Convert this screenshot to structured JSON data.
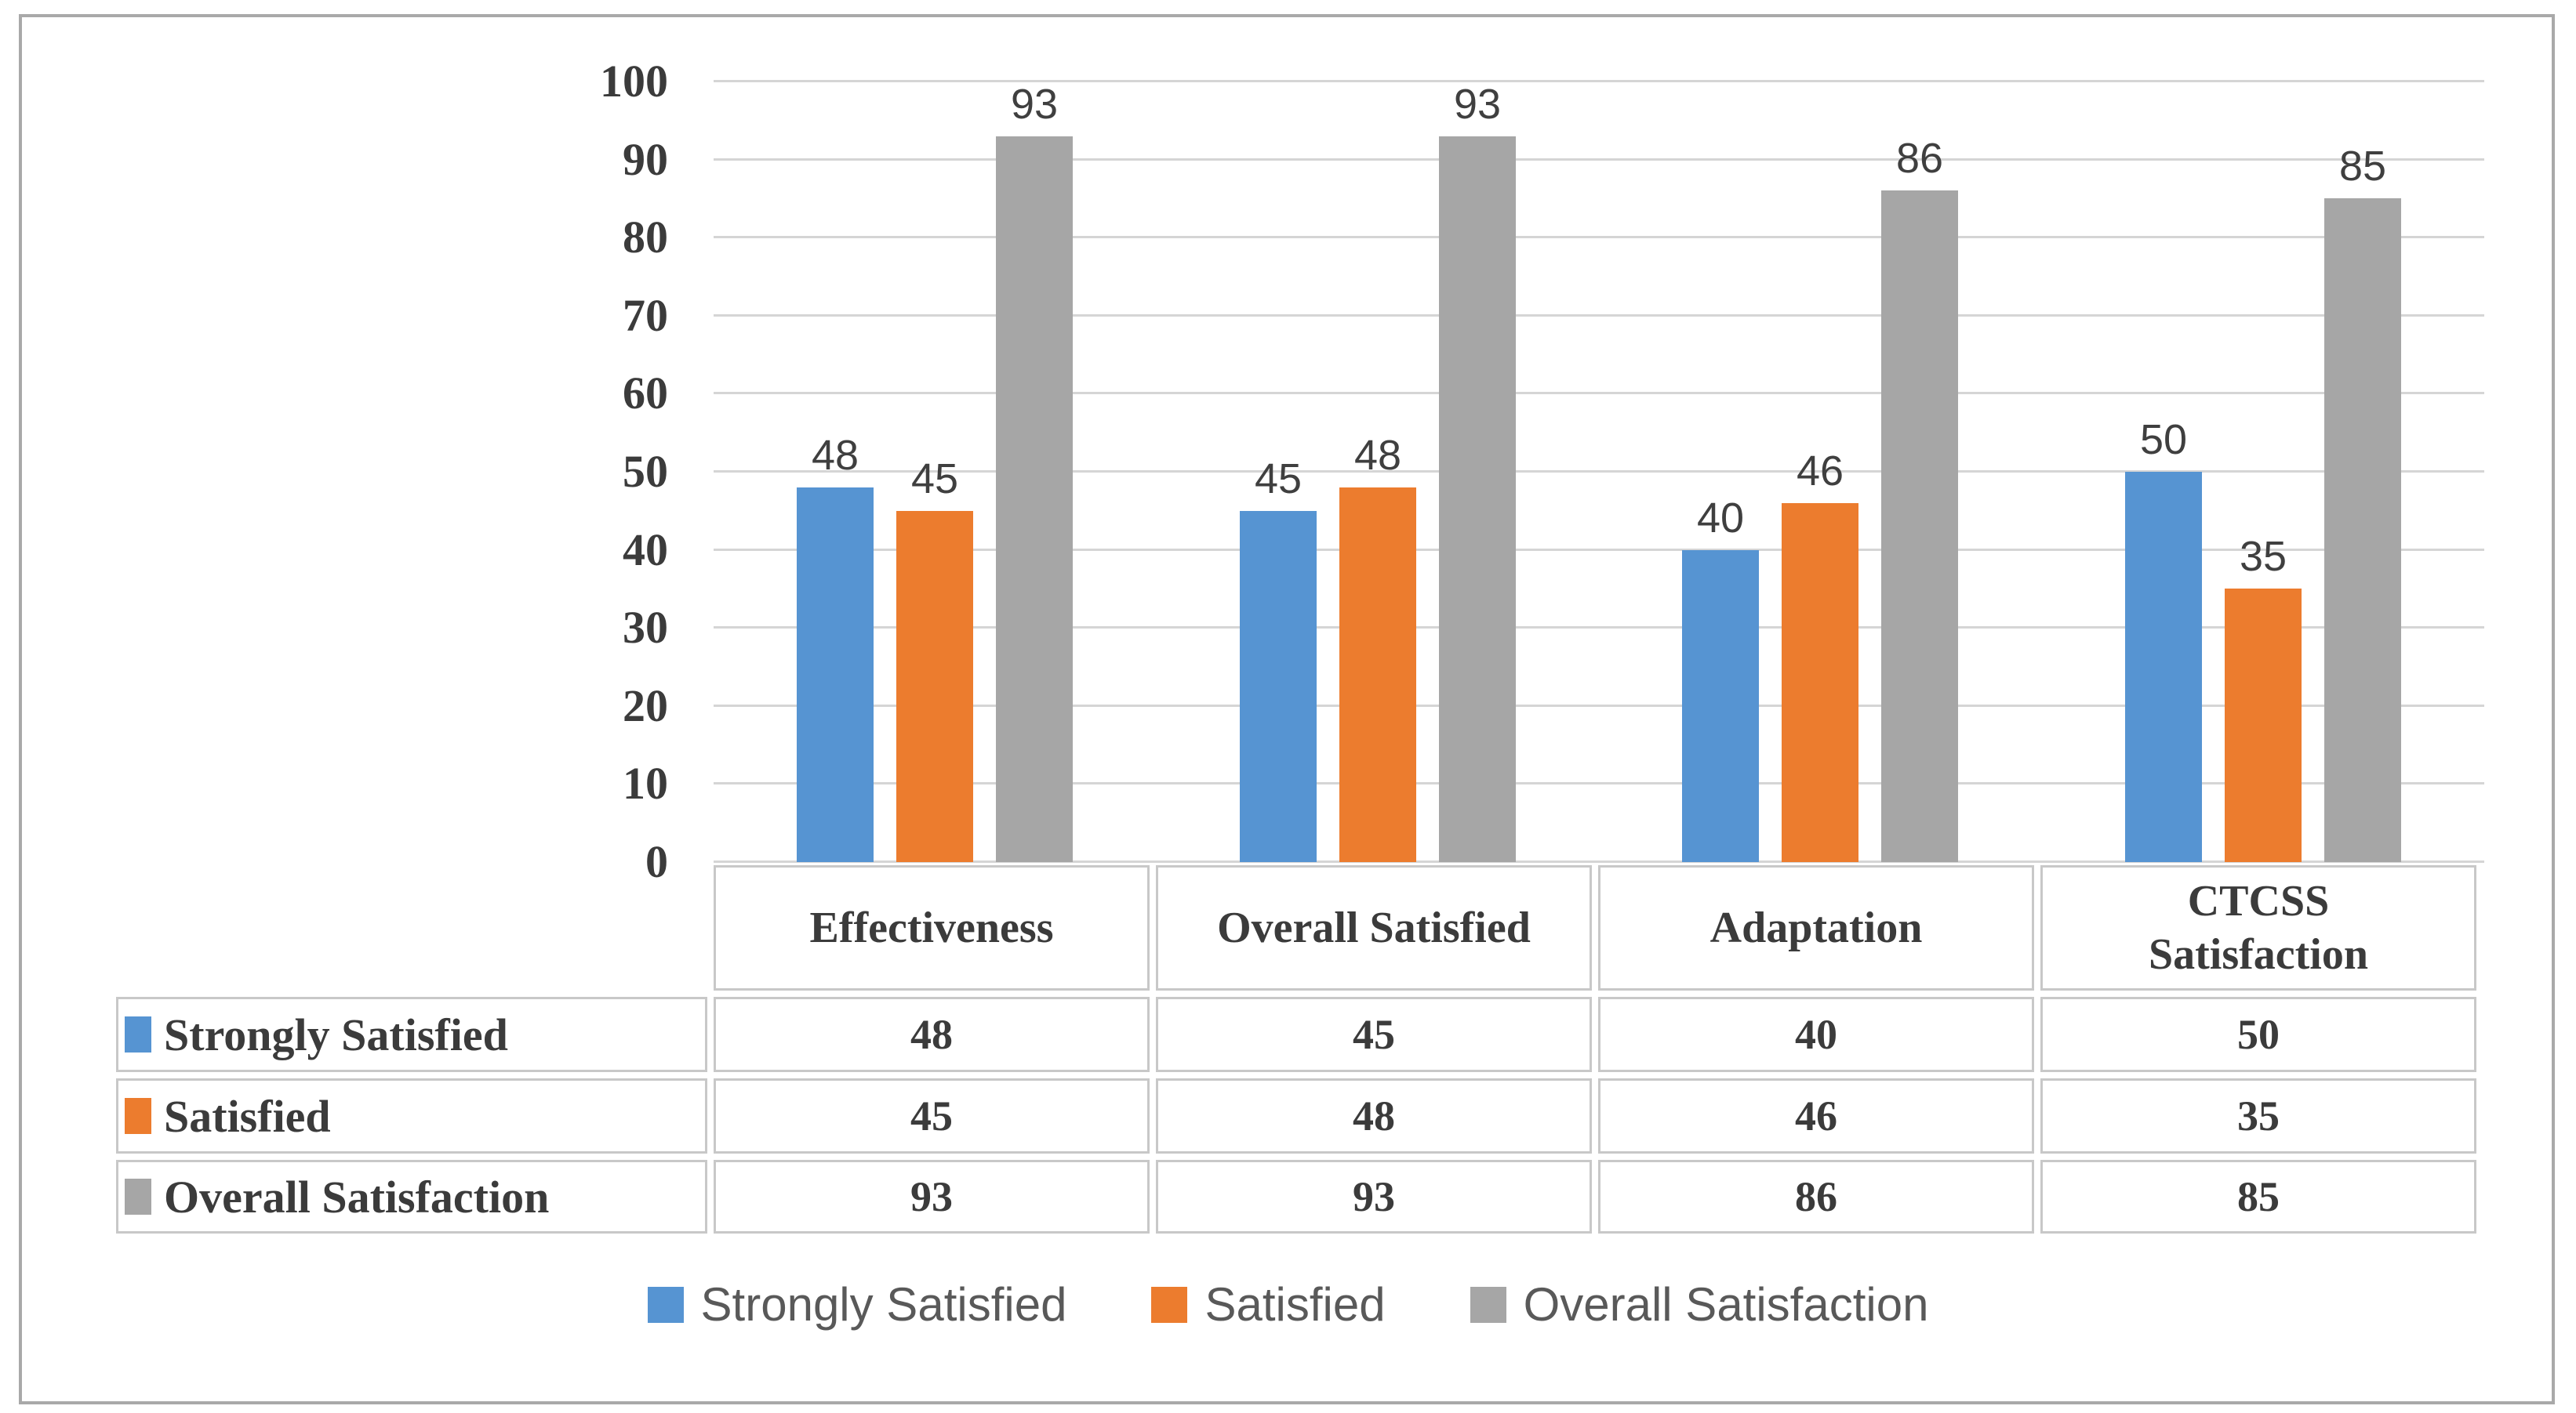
{
  "chart_data": {
    "type": "bar",
    "title": "",
    "categories": [
      "Effectiveness",
      "Overall Satisfied",
      "Adaptation",
      "CTCSS Satisfaction"
    ],
    "series": [
      {
        "name": "Strongly Satisfied",
        "color": "#5694D2",
        "values": [
          48,
          45,
          40,
          50
        ]
      },
      {
        "name": "Satisfied",
        "color": "#EC7C2E",
        "values": [
          45,
          48,
          46,
          35
        ]
      },
      {
        "name": "Overall Satisfaction",
        "color": "#A6A6A6",
        "values": [
          93,
          93,
          86,
          85
        ]
      }
    ],
    "ylim": [
      0,
      100
    ],
    "ytick_step": 10,
    "yticks": [
      "0",
      "10",
      "20",
      "30",
      "40",
      "50",
      "60",
      "70",
      "80",
      "90",
      "100"
    ],
    "xlabel": "",
    "ylabel": "",
    "grid": "horizontal",
    "legend_position": "bottom",
    "data_labels": "above-bars",
    "data_table_shown": true
  },
  "legend": {
    "entries": [
      "Strongly Satisfied",
      "Satisfied",
      "Overall Satisfaction"
    ]
  },
  "colors": {
    "series_blue": "#5694D2",
    "series_orange": "#EC7C2E",
    "series_gray": "#A6A6A6",
    "gridline": "#D5D5D5",
    "table_border": "#C8C8C8",
    "frame_border": "#A9A9A9",
    "axis_text": "#3B3B3B",
    "data_label_text": "#3F3F3F",
    "legend_text": "#595959"
  }
}
